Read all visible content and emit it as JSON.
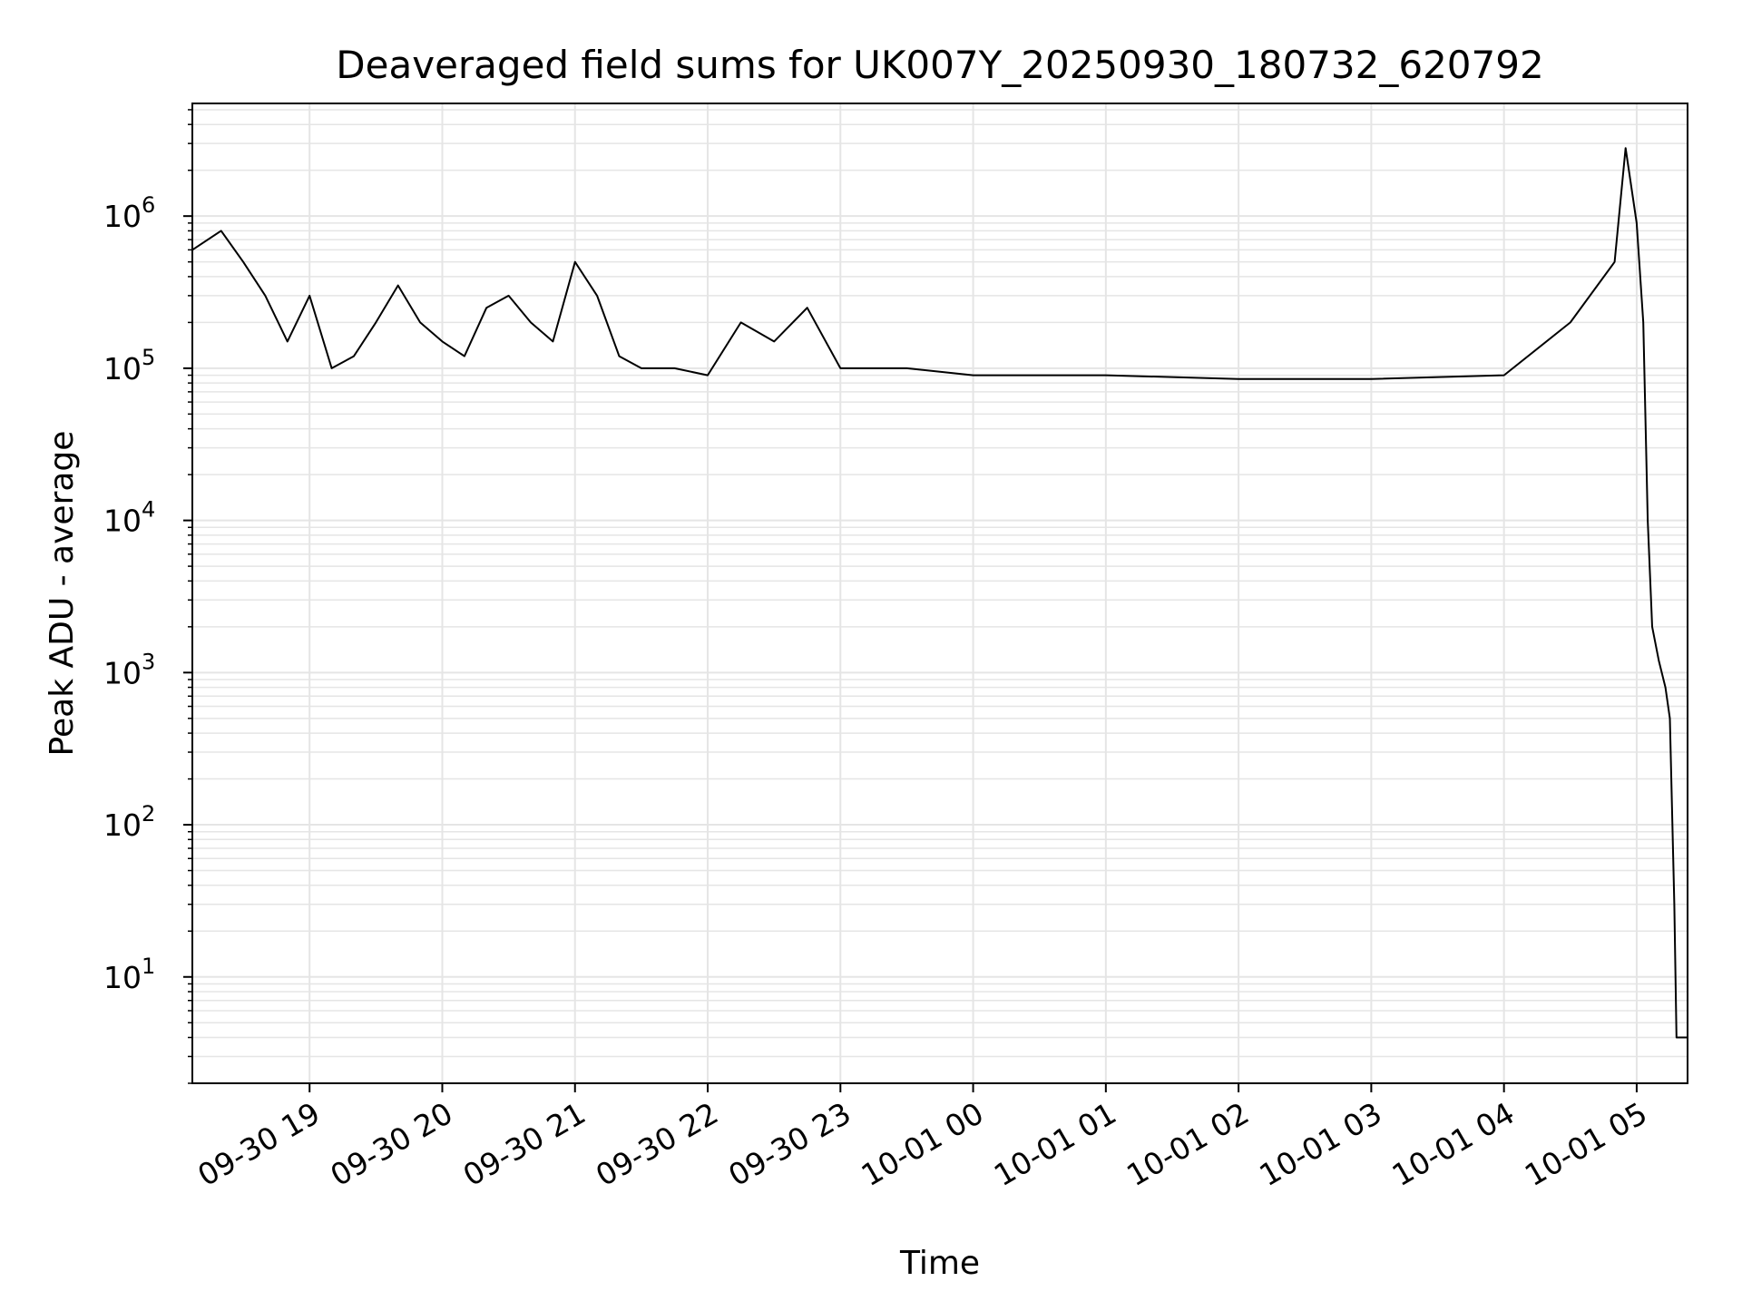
{
  "chart_data": {
    "type": "line",
    "title": "Deaveraged field sums for UK007Y_20250930_180732_620792",
    "xlabel": "Time",
    "ylabel": "Peak ADU - average",
    "yscale": "log",
    "ylim": [
      2,
      5500000
    ],
    "xlim": [
      "2025-09-30 18:07",
      "2025-10-01 05:23"
    ],
    "grid": true,
    "grid_color": "#e5e5e5",
    "line_color": "#000000",
    "x_ticks": [
      {
        "value": "2025-09-30 19:00",
        "label": "09-30 19"
      },
      {
        "value": "2025-09-30 20:00",
        "label": "09-30 20"
      },
      {
        "value": "2025-09-30 21:00",
        "label": "09-30 21"
      },
      {
        "value": "2025-09-30 22:00",
        "label": "09-30 22"
      },
      {
        "value": "2025-09-30 23:00",
        "label": "09-30 23"
      },
      {
        "value": "2025-10-01 00:00",
        "label": "10-01 00"
      },
      {
        "value": "2025-10-01 01:00",
        "label": "10-01 01"
      },
      {
        "value": "2025-10-01 02:00",
        "label": "10-01 02"
      },
      {
        "value": "2025-10-01 03:00",
        "label": "10-01 03"
      },
      {
        "value": "2025-10-01 04:00",
        "label": "10-01 04"
      },
      {
        "value": "2025-10-01 05:00",
        "label": "10-01 05"
      }
    ],
    "y_ticks": [
      {
        "value": 10,
        "base": "10",
        "exp": "1"
      },
      {
        "value": 100,
        "base": "10",
        "exp": "2"
      },
      {
        "value": 1000,
        "base": "10",
        "exp": "3"
      },
      {
        "value": 10000,
        "base": "10",
        "exp": "4"
      },
      {
        "value": 100000,
        "base": "10",
        "exp": "5"
      },
      {
        "value": 1000000,
        "base": "10",
        "exp": "6"
      }
    ],
    "series": [
      {
        "points": [
          [
            "2025-09-30 18:07",
            600000
          ],
          [
            "2025-09-30 18:20",
            800000
          ],
          [
            "2025-09-30 18:30",
            500000
          ],
          [
            "2025-09-30 18:40",
            300000
          ],
          [
            "2025-09-30 18:50",
            150000
          ],
          [
            "2025-09-30 19:00",
            300000
          ],
          [
            "2025-09-30 19:10",
            100000
          ],
          [
            "2025-09-30 19:20",
            120000
          ],
          [
            "2025-09-30 19:30",
            200000
          ],
          [
            "2025-09-30 19:40",
            350000
          ],
          [
            "2025-09-30 19:50",
            200000
          ],
          [
            "2025-09-30 20:00",
            150000
          ],
          [
            "2025-09-30 20:10",
            120000
          ],
          [
            "2025-09-30 20:20",
            250000
          ],
          [
            "2025-09-30 20:30",
            300000
          ],
          [
            "2025-09-30 20:40",
            200000
          ],
          [
            "2025-09-30 20:50",
            150000
          ],
          [
            "2025-09-30 21:00",
            500000
          ],
          [
            "2025-09-30 21:10",
            300000
          ],
          [
            "2025-09-30 21:20",
            120000
          ],
          [
            "2025-09-30 21:30",
            100000
          ],
          [
            "2025-09-30 21:45",
            100000
          ],
          [
            "2025-09-30 22:00",
            90000
          ],
          [
            "2025-09-30 22:15",
            200000
          ],
          [
            "2025-09-30 22:30",
            150000
          ],
          [
            "2025-09-30 22:45",
            250000
          ],
          [
            "2025-09-30 23:00",
            100000
          ],
          [
            "2025-09-30 23:30",
            100000
          ],
          [
            "2025-10-01 00:00",
            90000
          ],
          [
            "2025-10-01 01:00",
            90000
          ],
          [
            "2025-10-01 02:00",
            85000
          ],
          [
            "2025-10-01 03:00",
            85000
          ],
          [
            "2025-10-01 04:00",
            90000
          ],
          [
            "2025-10-01 04:30",
            200000
          ],
          [
            "2025-10-01 04:50",
            500000
          ],
          [
            "2025-10-01 04:55",
            2800000
          ],
          [
            "2025-10-01 05:00",
            900000
          ],
          [
            "2025-10-01 05:03",
            200000
          ],
          [
            "2025-10-01 05:05",
            10000
          ],
          [
            "2025-10-01 05:07",
            2000
          ],
          [
            "2025-10-01 05:10",
            1200
          ],
          [
            "2025-10-01 05:13",
            800
          ],
          [
            "2025-10-01 05:15",
            500
          ],
          [
            "2025-10-01 05:17",
            30
          ],
          [
            "2025-10-01 05:18",
            4
          ],
          [
            "2025-10-01 05:23",
            4
          ]
        ]
      }
    ]
  }
}
